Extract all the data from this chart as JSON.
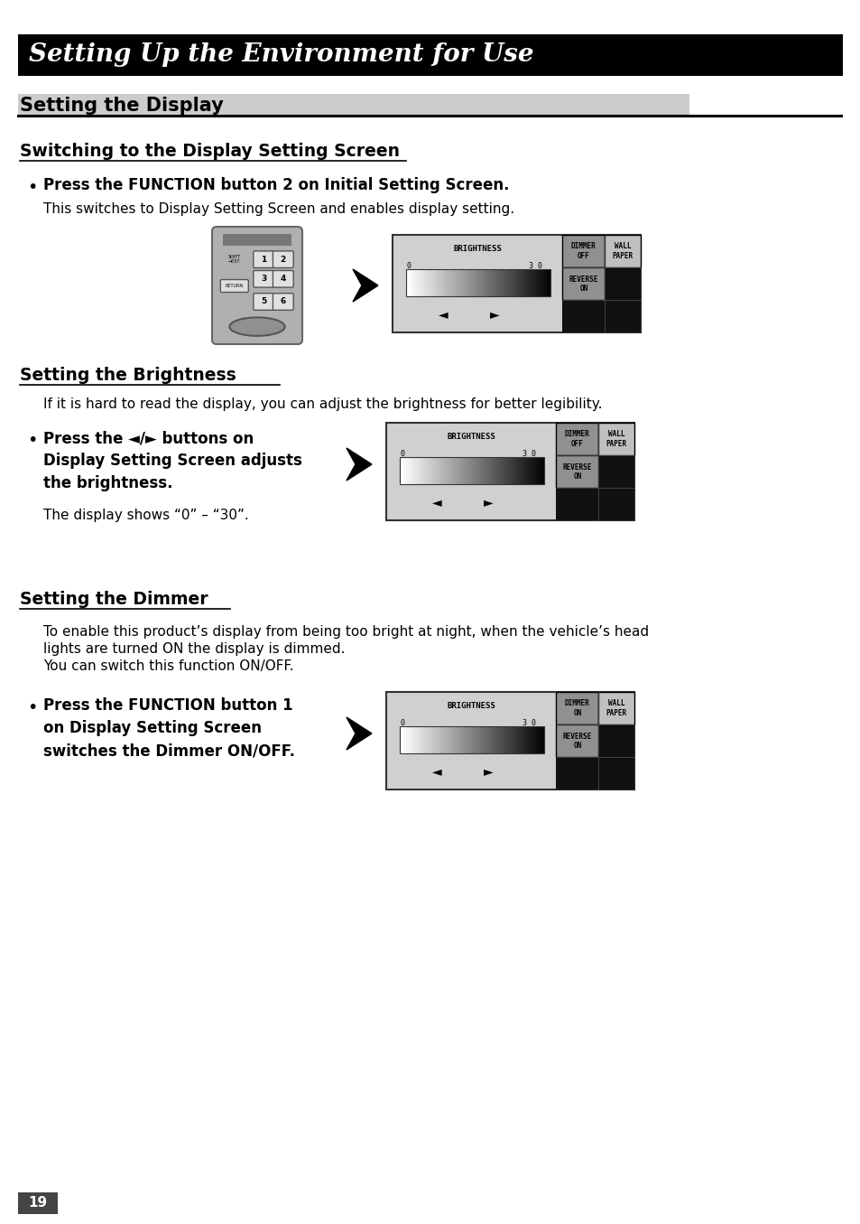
{
  "title_banner": "Setting Up the Environment for Use",
  "page_bg": "#ffffff",
  "section1_title": "Setting the Display",
  "section2_title": "Switching to the Display Setting Screen",
  "section3_title": "Setting the Brightness",
  "section4_title": "Setting the Dimmer",
  "bullet1_bold": "Press the FUNCTION button 2 on Initial Setting Screen.",
  "bullet1_normal": "This switches to Display Setting Screen and enables display setting.",
  "brightness_desc": "If it is hard to read the display, you can adjust the brightness for better legibility.",
  "bullet2_line1": "Press the ◄/► buttons on",
  "bullet2_line2": "Display Setting Screen adjusts",
  "bullet2_line3": "the brightness.",
  "bullet2_normal": "The display shows “0” – “30”.",
  "dimmer_desc1": "To enable this product’s display from being too bright at night, when the vehicle’s head",
  "dimmer_desc2": "lights are turned ON the display is dimmed.",
  "dimmer_desc3": "You can switch this function ON/OFF.",
  "bullet3_line1": "Press the FUNCTION button 1",
  "bullet3_line2": "on Display Setting Screen",
  "bullet3_line3": "switches the Dimmer ON/OFF.",
  "page_number": "19",
  "fw": 954,
  "fh": 1355,
  "dpi": 100
}
